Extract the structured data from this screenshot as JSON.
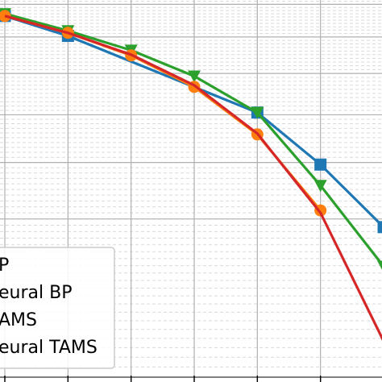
{
  "chart_data": {
    "type": "line",
    "title": "",
    "xlabel": "",
    "ylabel": "",
    "x": [
      0,
      1,
      2,
      3,
      4,
      5,
      6
    ],
    "xlim": [
      0,
      6
    ],
    "ylim": [
      0,
      1
    ],
    "yscale": "log",
    "grid": true,
    "legend_position": "bottom-left",
    "series": [
      {
        "name": "BP",
        "color": "#d62728",
        "marker": "none",
        "values": [
          0.963,
          0.912,
          0.85,
          0.77,
          0.659,
          0.51,
          0.337
        ]
      },
      {
        "name": "Neural BP",
        "color": "#ff7f0e",
        "marker": "circle",
        "values": [
          0.963,
          0.912,
          0.848,
          0.766,
          0.657,
          0.514,
          null
        ]
      },
      {
        "name": "TAMS",
        "color": "#2ca02c",
        "marker": "triangle-down",
        "values": [
          0.97,
          0.918,
          0.862,
          0.793,
          0.705,
          0.557,
          0.429
        ]
      },
      {
        "name": "Neural TAMS",
        "color": "#1f77b4",
        "marker": "square",
        "values": [
          0.963,
          0.903,
          null,
          null,
          0.705,
          0.596,
          0.487
        ]
      }
    ],
    "legend_labels": [
      "P",
      "eural BP",
      "AMS",
      "eural TAMS"
    ]
  }
}
